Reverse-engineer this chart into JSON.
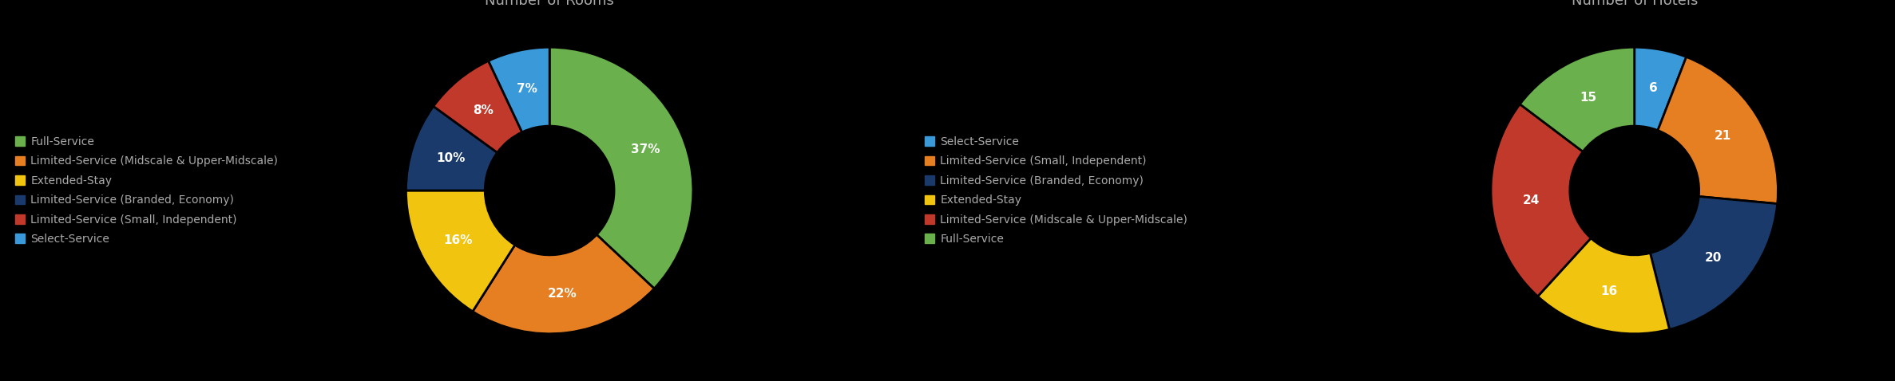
{
  "chart1_title": "Number of Rooms",
  "chart1_values": [
    37,
    22,
    16,
    10,
    8,
    7
  ],
  "chart1_colors": [
    "#6ab04c",
    "#e67e22",
    "#f1c40f",
    "#1a3a6b",
    "#c0392b",
    "#3a9ad9"
  ],
  "chart1_startangle": 90,
  "chart2_title": "Number of Hotels",
  "chart2_values": [
    6,
    21,
    20,
    16,
    24,
    15
  ],
  "chart2_colors": [
    "#3a9ad9",
    "#e67e22",
    "#1a3a6b",
    "#f1c40f",
    "#c0392b",
    "#6ab04c"
  ],
  "chart2_startangle": 90,
  "legend1_labels": [
    "Full-Service",
    "Limited-Service (Midscale & Upper-Midscale)",
    "Extended-Stay",
    "Limited-Service (Branded, Economy)",
    "Limited-Service (Small, Independent)",
    "Select-Service"
  ],
  "legend1_colors": [
    "#6ab04c",
    "#e67e22",
    "#f1c40f",
    "#1a3a6b",
    "#c0392b",
    "#3a9ad9"
  ],
  "legend2_labels": [
    "Select-Service",
    "Limited-Service (Small, Independent)",
    "Limited-Service (Branded, Economy)",
    "Extended-Stay",
    "Limited-Service (Midscale & Upper-Midscale)",
    "Full-Service"
  ],
  "legend2_colors": [
    "#3a9ad9",
    "#e67e22",
    "#1a3a6b",
    "#f1c40f",
    "#c0392b",
    "#6ab04c"
  ],
  "bg_color": "#000000",
  "text_color": "#aaaaaa",
  "label_color": "#ffffff",
  "title_fontsize": 13,
  "legend_fontsize": 10,
  "label_fontsize": 11
}
